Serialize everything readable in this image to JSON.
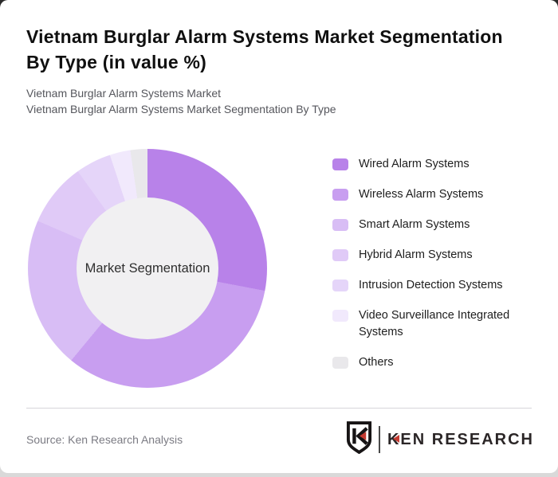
{
  "header": {
    "title_line1": "Vietnam Burglar Alarm Systems Market Segmentation",
    "title_line2": "By Type (in value %)",
    "subtitle_line1": "Vietnam Burglar Alarm Systems Market",
    "subtitle_line2": "Vietnam Burglar Alarm Systems Market Segmentation By Type"
  },
  "chart_data": {
    "type": "pie",
    "variant": "donut",
    "title": "Vietnam Burglar Alarm Systems Market Segmentation By Type (in value %)",
    "center_label": "Market Segmentation",
    "legend_position": "right",
    "start_angle_deg": 0,
    "direction": "clockwise",
    "value_labels_shown": false,
    "series": [
      {
        "label": "Wired Alarm Systems",
        "value": 28.0,
        "color": "#b882e9"
      },
      {
        "label": "Wireless Alarm Systems",
        "value": 33.0,
        "color": "#c89ef0"
      },
      {
        "label": "Smart Alarm Systems",
        "value": 20.5,
        "color": "#d8bdf5"
      },
      {
        "label": "Hybrid Alarm Systems",
        "value": 8.6,
        "color": "#e0caf7"
      },
      {
        "label": "Intrusion Detection Systems",
        "value": 4.8,
        "color": "#e5d5f9"
      },
      {
        "label": "Video Surveillance Integrated Systems",
        "value": 2.8,
        "color": "#f1e9fc"
      },
      {
        "label": "Others",
        "value": 2.3,
        "color": "#e9e8eb"
      }
    ],
    "inner_circle_color": "#f1f0f2"
  },
  "footer": {
    "source": "Source: Ken Research Analysis",
    "logo": {
      "brand_text_k": "K",
      "brand_text_rest": "EN RESEARCH"
    }
  },
  "colors": {
    "accent_red": "#c43a31",
    "logo_dark": "#2b2627",
    "divider": "#d6d5da",
    "subtitle_gray": "#55565c",
    "source_gray": "#7b7b83"
  }
}
